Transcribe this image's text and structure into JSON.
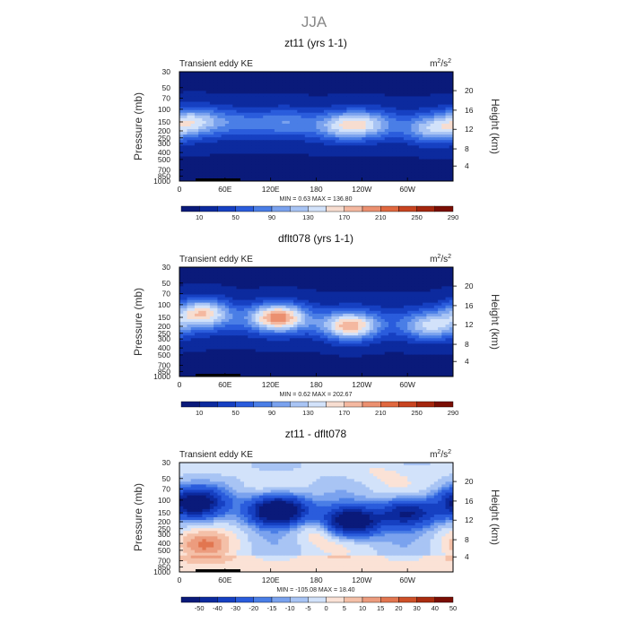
{
  "title": "JJA",
  "colors": {
    "pos_scale": [
      "#0a1a7a",
      "#0c2a9e",
      "#1640c2",
      "#2a5cdc",
      "#4a7ee6",
      "#7aa2ee",
      "#a8c4f4",
      "#d2e2fa",
      "#f7ddd0",
      "#f4b8a0",
      "#eb9070",
      "#e0683f",
      "#c84420",
      "#a4260e",
      "#7a0e04"
    ],
    "diff_scale": [
      "#0a1a7a",
      "#0c2a9e",
      "#1640c2",
      "#2a5cdc",
      "#4a7ee6",
      "#7aa2ee",
      "#a8c4f4",
      "#d2e2fa",
      "#fbe2d6",
      "#f4c0a8",
      "#ec9c7e",
      "#e27650",
      "#ce5028",
      "#aa2c10",
      "#7a0e04"
    ]
  },
  "chart_data": [
    {
      "type": "heatmap",
      "title": "zt11 (yrs 1-1)",
      "subtitle_left": "Transient eddy KE",
      "units_base": "m",
      "units_exp1": "2",
      "units_mid": "/s",
      "units_exp2": "2",
      "ylabel": "Pressure (mb)",
      "ylabel_right": "Height (km)",
      "x_ticks": [
        "0",
        "60E",
        "120E",
        "180",
        "120W",
        "60W"
      ],
      "y_ticks": [
        "30",
        "50",
        "70",
        "100",
        "150",
        "200",
        "250",
        "300",
        "400",
        "500",
        "700",
        "850",
        "1000"
      ],
      "y_right_ticks": [
        "20",
        "16",
        "12",
        "8",
        "4"
      ],
      "stats": "MIN =     0.63   MAX =  136.80",
      "min": 0.63,
      "max": 136.8,
      "colorbar_ticks": [
        "10",
        "50",
        "90",
        "130",
        "170",
        "210",
        "250",
        "290"
      ],
      "features": [
        {
          "lon": 20,
          "p": 145,
          "value": 125
        },
        {
          "lon": 80,
          "p": 150,
          "value": 65
        },
        {
          "lon": 140,
          "p": 150,
          "value": 80
        },
        {
          "lon": 215,
          "p": 170,
          "value": 120
        },
        {
          "lon": 250,
          "p": 160,
          "value": 100
        },
        {
          "lon": 335,
          "p": 190,
          "value": 120
        }
      ]
    },
    {
      "type": "heatmap",
      "title": "dflt078 (yrs 1-1)",
      "subtitle_left": "Transient eddy KE",
      "units_base": "m",
      "units_exp1": "2",
      "units_mid": "/s",
      "units_exp2": "2",
      "ylabel": "Pressure (mb)",
      "ylabel_right": "Height (km)",
      "x_ticks": [
        "0",
        "60E",
        "120E",
        "180",
        "120W",
        "60W"
      ],
      "y_ticks": [
        "30",
        "50",
        "70",
        "100",
        "150",
        "200",
        "250",
        "300",
        "400",
        "500",
        "700",
        "850",
        "1000"
      ],
      "y_right_ticks": [
        "20",
        "16",
        "12",
        "8",
        "4"
      ],
      "stats": "MIN =     0.62   MAX =  202.67",
      "min": 0.62,
      "max": 202.67,
      "colorbar_ticks": [
        "10",
        "50",
        "90",
        "130",
        "170",
        "210",
        "250",
        "290"
      ],
      "features": [
        {
          "lon": 30,
          "p": 130,
          "value": 170
        },
        {
          "lon": 130,
          "p": 150,
          "value": 200
        },
        {
          "lon": 225,
          "p": 200,
          "value": 180
        },
        {
          "lon": 330,
          "p": 200,
          "value": 130
        }
      ]
    },
    {
      "type": "heatmap",
      "title": "zt11 - dflt078",
      "subtitle_left": "Transient eddy KE",
      "units_base": "m",
      "units_exp1": "2",
      "units_mid": "/s",
      "units_exp2": "2",
      "ylabel": "Pressure (mb)",
      "ylabel_right": "Height (km)",
      "x_ticks": [
        "0",
        "60E",
        "120E",
        "180",
        "120W",
        "60W"
      ],
      "y_ticks": [
        "30",
        "50",
        "70",
        "100",
        "150",
        "200",
        "250",
        "300",
        "400",
        "500",
        "700",
        "850",
        "1000"
      ],
      "y_right_ticks": [
        "20",
        "16",
        "12",
        "8",
        "4"
      ],
      "stats": "MIN =  -105.08   MAX =   18.40",
      "min": -105.08,
      "max": 18.4,
      "colorbar_ticks": [
        "-50",
        "-40",
        "-30",
        "-20",
        "-15",
        "-10",
        "-5",
        "0",
        "5",
        "10",
        "15",
        "20",
        "30",
        "40",
        "50"
      ],
      "features": [
        {
          "lon": 20,
          "p": 110,
          "value": -60
        },
        {
          "lon": 130,
          "p": 140,
          "value": -80
        },
        {
          "lon": 225,
          "p": 200,
          "value": -70
        },
        {
          "lon": 300,
          "p": 150,
          "value": -50
        },
        {
          "lon": 30,
          "p": 420,
          "value": 15
        },
        {
          "lon": 185,
          "p": 250,
          "value": 12
        },
        {
          "lon": 270,
          "p": 40,
          "value": 5
        }
      ]
    }
  ]
}
